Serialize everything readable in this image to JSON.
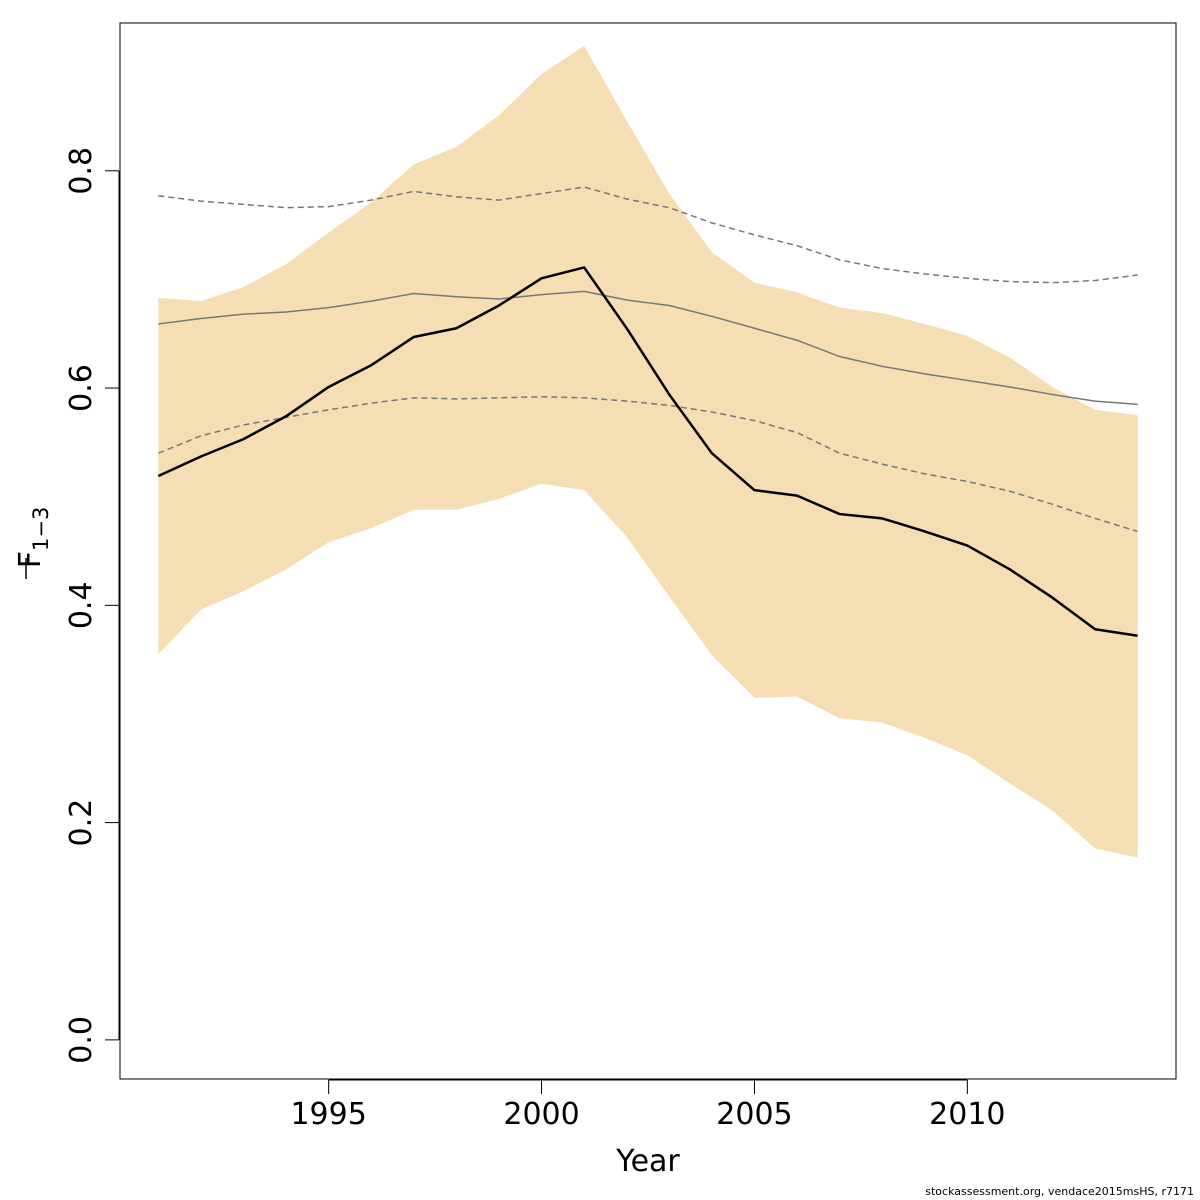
{
  "chart_data": {
    "type": "line",
    "xlabel": "Year",
    "ylabel_main": "F",
    "ylabel_sub": "1−3",
    "xlim": [
      1990.1,
      2014.9
    ],
    "ylim": [
      -0.036,
      0.936
    ],
    "x_ticks": [
      1995,
      2000,
      2005,
      2010
    ],
    "y_ticks": [
      0.0,
      0.2,
      0.4,
      0.6,
      0.8
    ],
    "y_tick_labels": [
      "0.0",
      "0.2",
      "0.4",
      "0.6",
      "0.8"
    ],
    "x": [
      1991,
      1992,
      1993,
      1994,
      1995,
      1996,
      1997,
      1998,
      1999,
      2000,
      2001,
      2002,
      2003,
      2004,
      2005,
      2006,
      2007,
      2008,
      2009,
      2010,
      2011,
      2012,
      2013,
      2014
    ],
    "confidence_band": {
      "color": "#f5deb3",
      "upper": [
        0.683,
        0.68,
        0.693,
        0.714,
        0.743,
        0.771,
        0.806,
        0.822,
        0.851,
        0.889,
        0.915,
        0.846,
        0.779,
        0.725,
        0.697,
        0.688,
        0.674,
        0.669,
        0.659,
        0.648,
        0.628,
        0.601,
        0.58,
        0.575
      ],
      "lower": [
        0.355,
        0.396,
        0.413,
        0.433,
        0.458,
        0.471,
        0.488,
        0.488,
        0.498,
        0.512,
        0.506,
        0.463,
        0.408,
        0.354,
        0.315,
        0.316,
        0.296,
        0.292,
        0.278,
        0.262,
        0.236,
        0.211,
        0.176,
        0.168
      ]
    },
    "series": [
      {
        "role": "estimate",
        "color": "#000000",
        "style": "solid",
        "values": [
          0.519,
          0.537,
          0.553,
          0.574,
          0.601,
          0.621,
          0.647,
          0.655,
          0.676,
          0.701,
          0.711,
          0.655,
          0.594,
          0.54,
          0.506,
          0.501,
          0.484,
          0.48,
          0.468,
          0.455,
          0.433,
          0.407,
          0.378,
          0.372
        ]
      },
      {
        "role": "reference",
        "color": "#777777",
        "style": "solid",
        "values": [
          0.659,
          0.664,
          0.668,
          0.67,
          0.674,
          0.68,
          0.687,
          0.684,
          0.682,
          0.686,
          0.689,
          0.681,
          0.676,
          0.666,
          0.655,
          0.644,
          0.629,
          0.62,
          0.613,
          0.607,
          0.601,
          0.594,
          0.588,
          0.585
        ]
      },
      {
        "role": "reference-upper",
        "color": "#777777",
        "style": "dashed",
        "values": [
          0.777,
          0.772,
          0.769,
          0.766,
          0.767,
          0.773,
          0.781,
          0.776,
          0.773,
          0.779,
          0.785,
          0.774,
          0.766,
          0.752,
          0.741,
          0.731,
          0.718,
          0.71,
          0.705,
          0.701,
          0.698,
          0.697,
          0.699,
          0.704
        ]
      },
      {
        "role": "reference-lower",
        "color": "#777777",
        "style": "dashed",
        "values": [
          0.54,
          0.556,
          0.566,
          0.573,
          0.58,
          0.586,
          0.591,
          0.59,
          0.591,
          0.592,
          0.591,
          0.588,
          0.584,
          0.578,
          0.57,
          0.559,
          0.54,
          0.53,
          0.521,
          0.514,
          0.505,
          0.493,
          0.48,
          0.468
        ]
      }
    ]
  },
  "footer": "stockassessment.org, vendace2015msHS, r7171"
}
